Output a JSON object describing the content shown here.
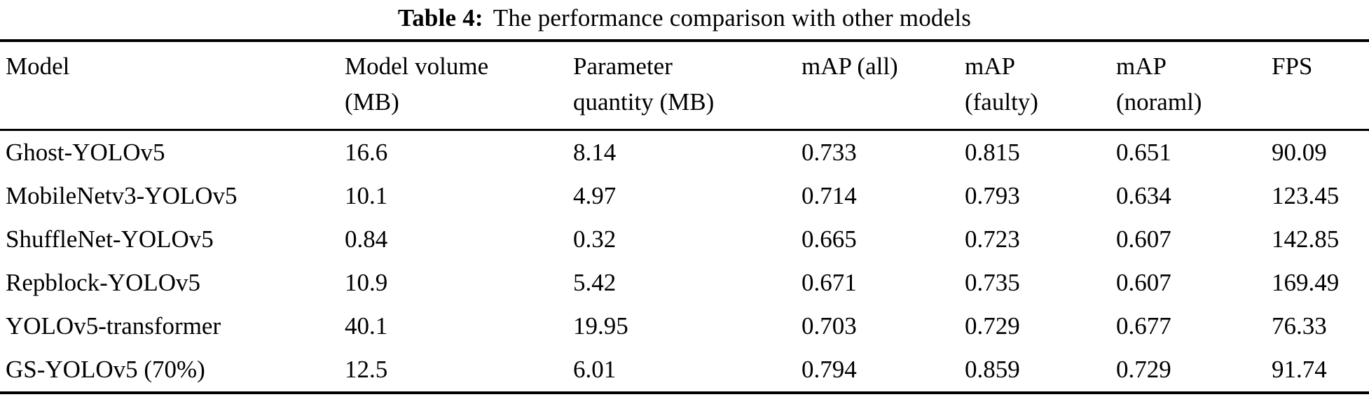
{
  "caption": {
    "label": "Table 4:",
    "text": "The performance comparison with other models"
  },
  "table": {
    "headers": [
      "Model",
      "Model volume\n(MB)",
      "Parameter\nquantity (MB)",
      "mAP (all)",
      "mAP\n(faulty)",
      "mAP\n(noraml)",
      "FPS"
    ],
    "rows": [
      [
        "Ghost-YOLOv5",
        "16.6",
        "8.14",
        "0.733",
        "0.815",
        "0.651",
        "90.09"
      ],
      [
        "MobileNetv3-YOLOv5",
        "10.1",
        "4.97",
        "0.714",
        "0.793",
        "0.634",
        "123.45"
      ],
      [
        "ShuffleNet-YOLOv5",
        "0.84",
        "0.32",
        "0.665",
        "0.723",
        "0.607",
        "142.85"
      ],
      [
        "Repblock-YOLOv5",
        "10.9",
        "5.42",
        "0.671",
        "0.735",
        "0.607",
        "169.49"
      ],
      [
        "YOLOv5-transformer",
        "40.1",
        "19.95",
        "0.703",
        "0.729",
        "0.677",
        "76.33"
      ],
      [
        "GS-YOLOv5 (70%)",
        "12.5",
        "6.01",
        "0.794",
        "0.859",
        "0.729",
        "91.74"
      ]
    ]
  },
  "colors": {
    "text": "#000000",
    "background": "#ffffff",
    "rule": "#000000"
  }
}
